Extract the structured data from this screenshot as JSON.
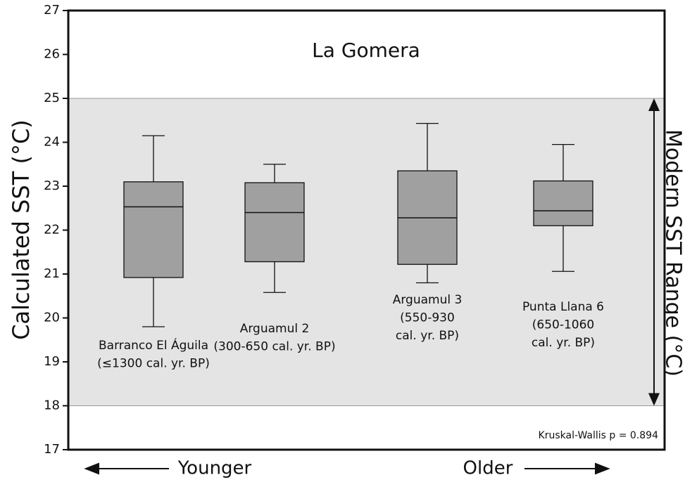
{
  "chart_data": {
    "type": "box",
    "title": "La Gomera",
    "ylabel": "Calculated SST (°C)",
    "range_label": "Modern SST Range (°C)",
    "range": [
      18,
      25
    ],
    "range_color": "#e4e4e4",
    "box_color": "#a0a0a0",
    "categories": [
      [
        "Barranco El Águila",
        "(≤1300 cal. yr. BP)"
      ],
      [
        "Arguamul 2",
        "(300-650 cal. yr. BP)"
      ],
      [
        "Arguamul 3",
        "(550-930",
        "cal. yr. BP)"
      ],
      [
        "Punta Llana 6",
        "(650-1060",
        "cal. yr. BP)"
      ]
    ],
    "boxes": [
      {
        "low": 19.8,
        "q1": 20.92,
        "median": 22.53,
        "q3": 23.1,
        "high": 24.15
      },
      {
        "low": 20.58,
        "q1": 21.28,
        "median": 22.4,
        "q3": 23.08,
        "high": 23.5
      },
      {
        "low": 20.8,
        "q1": 21.22,
        "median": 22.28,
        "q3": 23.35,
        "high": 24.43
      },
      {
        "low": 21.06,
        "q1": 22.1,
        "median": 22.44,
        "q3": 23.12,
        "high": 23.95
      }
    ],
    "ylim": [
      17,
      27
    ],
    "yticks": [
      17,
      18,
      19,
      20,
      21,
      22,
      23,
      24,
      25,
      26,
      27
    ],
    "annotations": [
      "Kruskal-Wallis p = 0.894",
      "Younger",
      "Older"
    ]
  }
}
